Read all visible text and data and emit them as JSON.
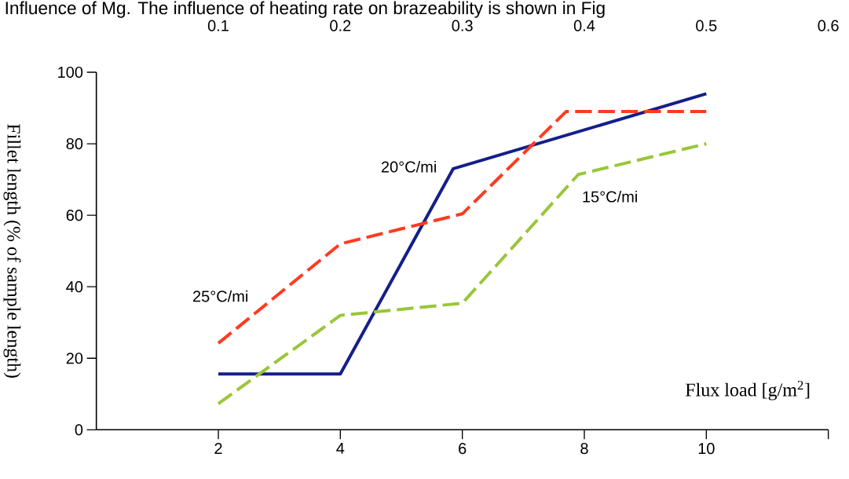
{
  "chart_data": {
    "type": "line",
    "xlabel": "Flux load [g/m$^{2}$]",
    "ylabel": "Fillet length (% of sample length)",
    "annotations": [
      "Influence of Mg. The influence of heating rate on brazeability is shown in Fig"
    ],
    "xlim": [
      0,
      12
    ],
    "xticks": [
      2,
      4,
      6,
      8,
      10,
      {
        "value": 12,
        "label": null
      }
    ],
    "ylim": [
      0,
      100
    ],
    "yticks": [
      0,
      20,
      40,
      60,
      80,
      100
    ],
    "x2lim": [
      0,
      0.6
    ],
    "x2ticks": [
      0.1,
      0.2,
      0.3,
      0.4,
      0.5,
      0.6
    ],
    "grid": false,
    "legend": false,
    "series": [
      {
        "name": "20°C/mi",
        "color": "#141f8a",
        "line_style": "solid",
        "x": [
          2,
          4,
          5.85,
          10
        ],
        "values": [
          15.6,
          15.6,
          73,
          94
        ]
      },
      {
        "name": "15°C/mi",
        "color": "#99c63a",
        "line_style": "dashed",
        "x": [
          2,
          4,
          6,
          7.9,
          10
        ],
        "values": [
          7.3,
          32,
          35.4,
          71.4,
          80
        ]
      },
      {
        "name": "25°C/mi",
        "color": "#ff3b1f",
        "line_style": "dashed",
        "x": [
          2,
          4,
          6,
          7.7,
          10
        ],
        "values": [
          24.2,
          52,
          60.4,
          89,
          89
        ]
      }
    ]
  }
}
